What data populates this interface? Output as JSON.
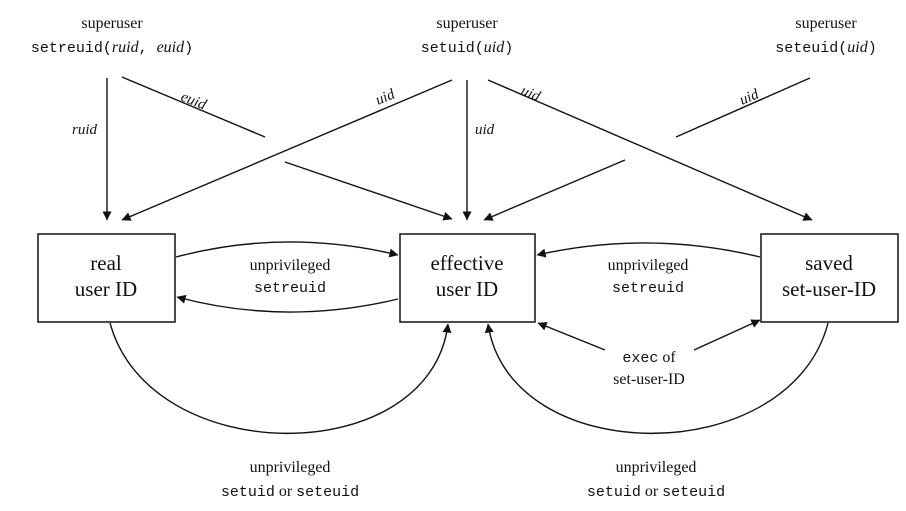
{
  "top_sources": {
    "left": {
      "title": "superuser",
      "call": "setreuid",
      "open": "(",
      "arg1": "ruid",
      "sep": ", ",
      "arg2": "euid",
      "close": ")"
    },
    "middle": {
      "title": "superuser",
      "call": "setuid",
      "open": "(",
      "arg": "uid",
      "close": ")"
    },
    "right": {
      "title": "superuser",
      "call": "seteuid",
      "open": "(",
      "arg": "uid",
      "close": ")"
    }
  },
  "boxes": {
    "real": {
      "line1": "real",
      "line2": "user ID"
    },
    "effective": {
      "line1": "effective",
      "line2": "user ID"
    },
    "saved": {
      "line1": "saved",
      "line2": "set-user-ID"
    }
  },
  "arrow_labels": {
    "ruid": "ruid",
    "euid": "euid",
    "uid_to_real": "uid",
    "uid_to_effective": "uid",
    "uid_to_saved": "uid",
    "uid_seteuid": "uid"
  },
  "middle_labels": {
    "left": {
      "line1": "unprivileged",
      "line2": "setreuid"
    },
    "right": {
      "line1": "unprivileged",
      "line2": "setreuid"
    },
    "exec": {
      "call": "exec",
      "of": " of",
      "line2": "set-user-ID"
    }
  },
  "bottom_labels": {
    "left": {
      "line1": "unprivileged",
      "call1": "setuid",
      "or": " or ",
      "call2": "seteuid"
    },
    "right": {
      "line1": "unprivileged",
      "call1": "setuid",
      "or": " or ",
      "call2": "seteuid"
    }
  }
}
